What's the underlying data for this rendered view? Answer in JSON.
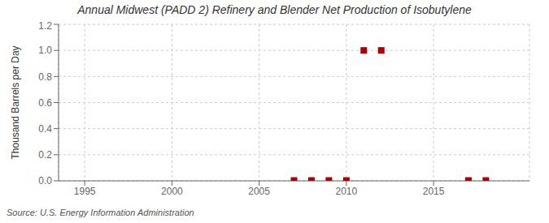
{
  "chart_data": {
    "type": "scatter",
    "title": "Annual Midwest (PADD 2) Refinery and Blender Net Production of Isobutylene",
    "y_label": "Thousand Barrels per Day",
    "source": "Source: U.S. Energy Information Administration",
    "x": [
      2007,
      2008,
      2009,
      2010,
      2011,
      2012,
      2017,
      2018
    ],
    "values": [
      0.003,
      0.003,
      0.003,
      0.003,
      1.0,
      1.0,
      0.003,
      0.003
    ],
    "color": "#aa0000",
    "marker": "square",
    "xlim": [
      1993.5,
      2020.5
    ],
    "ylim": [
      0.0,
      1.2
    ],
    "xticks": [
      1995,
      2000,
      2005,
      2010,
      2015
    ],
    "yticks": [
      {
        "value": 0,
        "label": "0.0"
      },
      0.2,
      0.4,
      0.6,
      0.8,
      {
        "value": 1,
        "label": "1.0"
      },
      1.2
    ],
    "grid": true
  }
}
